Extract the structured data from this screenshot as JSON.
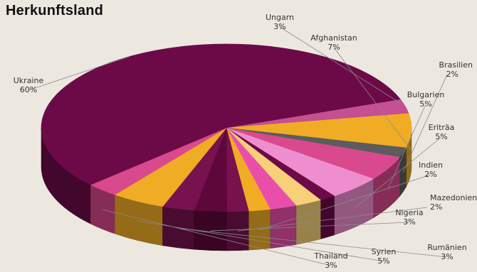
{
  "chart_data": {
    "type": "pie",
    "style": "3d",
    "title": "Herkunftsland",
    "legend": "none",
    "slices": [
      {
        "label": "Ungarn",
        "value": 3,
        "display": "3%",
        "color": "#c44f91"
      },
      {
        "label": "Afghanistan",
        "value": 7,
        "display": "7%",
        "color": "#f0ac25"
      },
      {
        "label": "Brasilien",
        "value": 2,
        "display": "2%",
        "color": "#5c5c5c"
      },
      {
        "label": "Bulgarien",
        "value": 5,
        "display": "5%",
        "color": "#d8498d"
      },
      {
        "label": "Eriträa",
        "value": 5,
        "display": "5%",
        "color": "#ee8ece"
      },
      {
        "label": "",
        "value": 1.5,
        "display": "",
        "color": "#6c0a48"
      },
      {
        "label": "",
        "value": 2.5,
        "display": "",
        "color": "#f7d078"
      },
      {
        "label": "",
        "value": 2.5,
        "display": "",
        "color": "#e94faa"
      },
      {
        "label": "Indien",
        "value": 2,
        "display": "2%",
        "color": "#f0ac25"
      },
      {
        "label": "Mazedonien",
        "value": 2,
        "display": "2%",
        "color": "#77124f"
      },
      {
        "label": "Nigeria",
        "value": 3,
        "display": "3%",
        "color": "#5d073b"
      },
      {
        "label": "Rumänien",
        "value": 3,
        "display": "3%",
        "color": "#77124f"
      },
      {
        "label": "Syrien",
        "value": 5,
        "display": "5%",
        "color": "#f0ac25"
      },
      {
        "label": "Thailand",
        "value": 3,
        "display": "3%",
        "color": "#d8498d"
      },
      {
        "label": "Ukraine",
        "value": 60,
        "display": "60%",
        "color": "#6c0a48"
      }
    ]
  }
}
